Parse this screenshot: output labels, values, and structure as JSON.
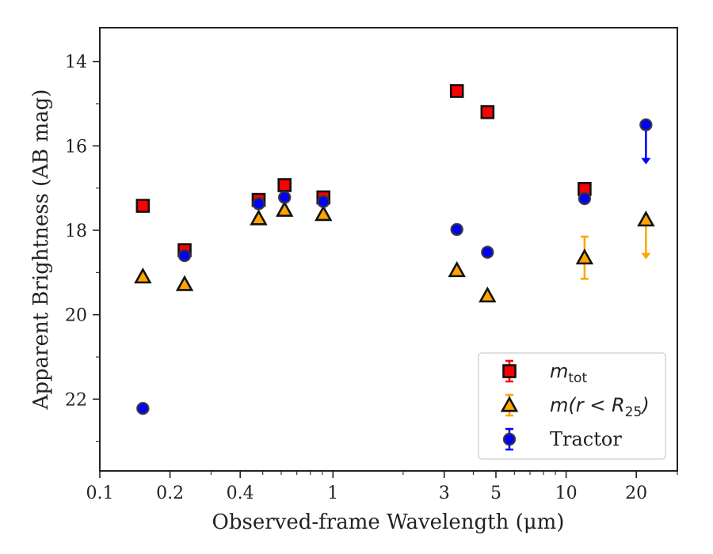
{
  "chart_data": {
    "type": "scatter",
    "title": "",
    "xlabel": "Observed-frame Wavelength (μm)",
    "ylabel": "Apparent Brightness (AB mag)",
    "xscale": "log",
    "xlim": [
      0.1,
      30
    ],
    "ylim": [
      23.7,
      13.2
    ],
    "y_inverted": true,
    "x_ticks": [
      0.1,
      0.2,
      0.4,
      1,
      3,
      5,
      10,
      20
    ],
    "x_tick_labels": [
      "0.1",
      "0.2",
      "0.4",
      "1",
      "3",
      "5",
      "10",
      "20"
    ],
    "y_ticks": [
      14,
      16,
      18,
      20,
      22
    ],
    "y_tick_labels": [
      "14",
      "16",
      "18",
      "20",
      "22"
    ],
    "grid": false,
    "legend_position": "lower-right",
    "series": [
      {
        "name": "m_tot",
        "color": "#ff0000",
        "marker": "square",
        "points": [
          {
            "x": 0.153,
            "y": 17.42
          },
          {
            "x": 0.231,
            "y": 18.47
          },
          {
            "x": 0.48,
            "y": 17.28
          },
          {
            "x": 0.62,
            "y": 16.93
          },
          {
            "x": 0.91,
            "y": 17.22
          },
          {
            "x": 3.4,
            "y": 14.7
          },
          {
            "x": 4.6,
            "y": 15.2
          },
          {
            "x": 12.0,
            "y": 17.02
          }
        ]
      },
      {
        "name": "m(r < R25)",
        "color": "#ffa500",
        "marker": "triangle",
        "points": [
          {
            "x": 0.153,
            "y": 19.1
          },
          {
            "x": 0.231,
            "y": 19.28
          },
          {
            "x": 0.48,
            "y": 17.72
          },
          {
            "x": 0.62,
            "y": 17.52
          },
          {
            "x": 0.91,
            "y": 17.62
          },
          {
            "x": 3.4,
            "y": 18.95
          },
          {
            "x": 4.6,
            "y": 19.55
          },
          {
            "x": 12.0,
            "y": 18.65,
            "yerr": 0.5
          },
          {
            "x": 22.0,
            "y": 17.75,
            "upper_limit": true
          }
        ]
      },
      {
        "name": "Tractor",
        "color": "#0000ff",
        "marker": "circle",
        "points": [
          {
            "x": 0.153,
            "y": 22.22
          },
          {
            "x": 0.231,
            "y": 18.6
          },
          {
            "x": 0.48,
            "y": 17.37
          },
          {
            "x": 0.62,
            "y": 17.22
          },
          {
            "x": 0.91,
            "y": 17.32
          },
          {
            "x": 3.4,
            "y": 17.98
          },
          {
            "x": 4.6,
            "y": 18.52
          },
          {
            "x": 12.0,
            "y": 17.25
          },
          {
            "x": 22.0,
            "y": 15.5,
            "upper_limit": true
          }
        ]
      }
    ]
  }
}
